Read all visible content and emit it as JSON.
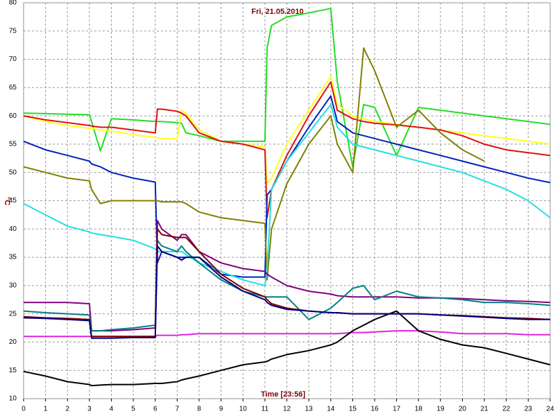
{
  "chart_data": {
    "type": "line",
    "title": "Fri, 21.05.2010",
    "x_label": "Time [23:56]",
    "y_label": "°C",
    "x": [
      0,
      1,
      2,
      3,
      3.1,
      3.5,
      4,
      5,
      6,
      6.1,
      6.3,
      7,
      7.2,
      7.4,
      8,
      9,
      10,
      11,
      11.1,
      11.3,
      12,
      13,
      14,
      14.3,
      15,
      15.5,
      16,
      17,
      18,
      19,
      20,
      21,
      22,
      23,
      24
    ],
    "xlim": [
      0,
      24
    ],
    "xticks": [
      0,
      1,
      2,
      3,
      4,
      5,
      6,
      7,
      8,
      9,
      10,
      11,
      12,
      13,
      14,
      15,
      16,
      17,
      18,
      19,
      20,
      21,
      22,
      23,
      24
    ],
    "ylim": [
      10,
      80
    ],
    "yticks": [
      10,
      15,
      20,
      25,
      30,
      35,
      40,
      45,
      50,
      55,
      60,
      65,
      70,
      75,
      80
    ],
    "grid": true,
    "series": [
      {
        "color": "#22dd22",
        "values": [
          60.5,
          60.4,
          60.3,
          60.2,
          59,
          53.8,
          59.5,
          59.3,
          59,
          59,
          59,
          58.8,
          58.7,
          57,
          56.5,
          55.5,
          55.5,
          55.5,
          72,
          76,
          77.5,
          78.2,
          79,
          66,
          51,
          62,
          61.5,
          53,
          61.5,
          61,
          60.5,
          60,
          59.5,
          59,
          58.5
        ]
      },
      {
        "color": "#ffff22",
        "values": [
          60,
          59,
          58.3,
          57.8,
          57.8,
          57.5,
          57.3,
          56.7,
          56.2,
          56.1,
          56,
          56,
          61,
          60.5,
          57.5,
          55.5,
          55,
          54.5,
          48,
          49,
          55,
          61,
          67,
          62,
          60,
          59.5,
          59,
          58.5,
          58,
          57.5,
          57,
          56.5,
          56,
          55.5,
          55
        ]
      },
      {
        "color": "#dd1111",
        "values": [
          60,
          59.3,
          58.8,
          58.3,
          58.2,
          58,
          58,
          57.5,
          57,
          61.2,
          61.2,
          60.8,
          60.5,
          60,
          57,
          55.5,
          55,
          54,
          42,
          47,
          53,
          60,
          66,
          61,
          59.5,
          59,
          58.7,
          58.4,
          58,
          57.5,
          56.5,
          55,
          54,
          53.5,
          53
        ]
      },
      {
        "color": "#0022bb",
        "values": [
          55.5,
          54,
          53,
          52,
          51.5,
          51,
          50,
          49,
          48.3,
          34,
          36,
          35,
          35,
          35,
          35,
          32,
          31.5,
          31.5,
          46,
          47,
          52,
          58,
          63.5,
          59,
          57,
          56.5,
          56,
          55,
          54,
          53,
          52,
          51,
          50,
          49,
          48.2
        ]
      },
      {
        "color": "#808000",
        "values": [
          51,
          50,
          49,
          48.5,
          47,
          44.5,
          45,
          45,
          45,
          45,
          44.8,
          44.8,
          44.8,
          44.5,
          43,
          42,
          41.5,
          41,
          31,
          40,
          48,
          55,
          60,
          55,
          50,
          72,
          68,
          58,
          61,
          57,
          54,
          52,
          null,
          null,
          null
        ]
      },
      {
        "color": "#22e0e0",
        "values": [
          44.5,
          42.5,
          40.5,
          39.5,
          39.3,
          39,
          38.7,
          38,
          36.5,
          36,
          36,
          36,
          36,
          35.5,
          34,
          32.5,
          31,
          30,
          33,
          47,
          52,
          57,
          62,
          58,
          55,
          54.5,
          54,
          53,
          52,
          51,
          50,
          48.5,
          47,
          45,
          42
        ]
      },
      {
        "color": "#dd22dd",
        "values": [
          21,
          21,
          21,
          21,
          21,
          21,
          21,
          21,
          21,
          21.2,
          21.2,
          21.2,
          21.3,
          21.3,
          21.5,
          21.5,
          21.5,
          21.5,
          21.5,
          21.5,
          21.5,
          21.5,
          21.5,
          21.5,
          21.7,
          21.7,
          21.8,
          22,
          22,
          21.8,
          21.5,
          21.5,
          21.5,
          21.3,
          21.3
        ]
      },
      {
        "color": "#000000",
        "values": [
          14.8,
          14,
          13,
          12.5,
          12.3,
          12.4,
          12.5,
          12.5,
          12.7,
          12.7,
          12.7,
          13,
          13.3,
          13.5,
          14,
          15,
          16,
          16.5,
          16.6,
          17,
          17.8,
          18.5,
          19.5,
          20,
          22,
          23,
          24,
          25.5,
          22,
          20.5,
          19.5,
          19,
          18,
          17,
          16
        ]
      },
      {
        "color": "#800080",
        "values": [
          27,
          27,
          27,
          26.8,
          22,
          22,
          22,
          22.2,
          22.5,
          41.5,
          40,
          38,
          39,
          39,
          36,
          34,
          33,
          32.5,
          32,
          31.5,
          30,
          29,
          28.5,
          28.2,
          28,
          28,
          28,
          28,
          27.8,
          27.8,
          27.7,
          27.5,
          27.3,
          27.2,
          27
        ]
      },
      {
        "color": "#008080",
        "values": [
          25.5,
          25.2,
          25,
          24.8,
          22,
          22,
          22.2,
          22.5,
          23,
          38,
          37,
          36,
          37,
          36,
          34,
          31,
          29,
          28,
          28,
          28,
          28,
          24,
          26,
          27,
          29.5,
          30,
          27.5,
          29,
          28,
          27.8,
          27.5,
          27,
          27,
          26.8,
          26.5
        ]
      },
      {
        "color": "#800000",
        "values": [
          24.5,
          24.3,
          24.2,
          24,
          21,
          21,
          21,
          21,
          21,
          40,
          39,
          38.5,
          38.5,
          38.5,
          36,
          32,
          29.5,
          28,
          27.5,
          26.8,
          26,
          25.5,
          25.2,
          25.2,
          25,
          25,
          25,
          25,
          25,
          24.8,
          24.7,
          24.5,
          24.3,
          24.2,
          24
        ]
      },
      {
        "color": "#000080",
        "values": [
          24.3,
          24.2,
          24,
          23.8,
          20.7,
          20.7,
          20.7,
          20.8,
          20.8,
          37,
          36,
          35,
          34.5,
          35,
          35,
          31.5,
          29,
          27.5,
          27,
          26.5,
          25.8,
          25.5,
          25.2,
          25.2,
          25,
          25,
          25,
          25,
          25,
          24.8,
          24.6,
          24.4,
          24.2,
          24,
          24
        ]
      }
    ]
  }
}
